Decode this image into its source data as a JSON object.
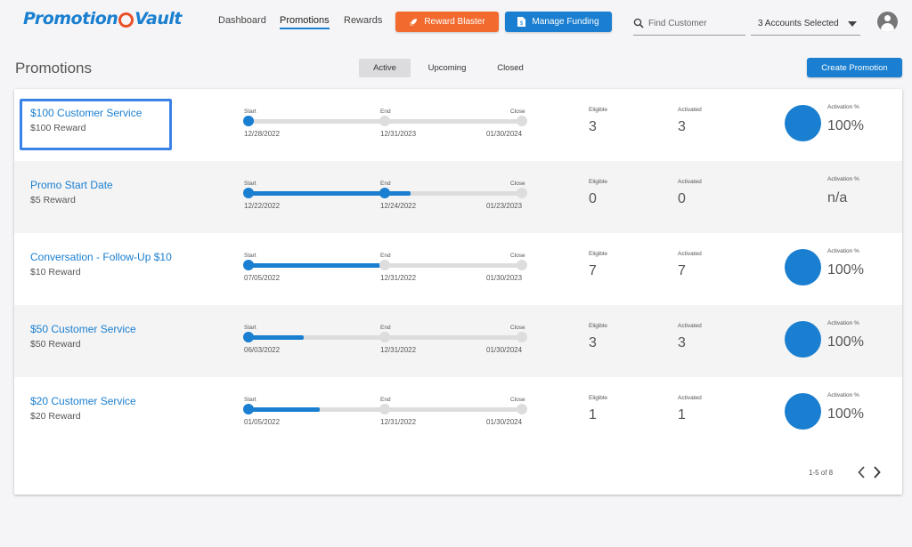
{
  "app": {
    "logo_text_a": "Promotion",
    "logo_text_b": "Vault"
  },
  "nav": {
    "items": [
      "Dashboard",
      "Promotions",
      "Rewards"
    ],
    "active": "Promotions"
  },
  "header_buttons": {
    "reward_blaster": "Reward Blaster",
    "manage_funding": "Manage Funding"
  },
  "search": {
    "placeholder": "Find Customer",
    "icon": "search-icon"
  },
  "accounts": {
    "selected_label": "3 Accounts Selected"
  },
  "page": {
    "title": "Promotions",
    "tabs": [
      "Active",
      "Upcoming",
      "Closed"
    ],
    "active_tab": "Active",
    "create_button": "Create Promotion"
  },
  "timeline_labels": {
    "start": "Start",
    "end": "End",
    "close": "Close"
  },
  "stat_labels": {
    "eligible": "Eligible",
    "activated": "Activated",
    "activation_pct": "Activation %"
  },
  "promotions": [
    {
      "name": "$100 Customer Service",
      "reward": "$100 Reward",
      "start": "12/28/2022",
      "end": "12/31/2023",
      "close": "01/30/2024",
      "progress": 0.0,
      "end_reached": false,
      "eligible": "3",
      "activated": "3",
      "activation_pct": "100%",
      "activation_fraction": 1.0
    },
    {
      "name": "Promo Start Date",
      "reward": "$5 Reward",
      "start": "12/22/2022",
      "end": "12/24/2022",
      "close": "01/23/2023",
      "progress": 0.59,
      "end_reached": true,
      "eligible": "0",
      "activated": "0",
      "activation_pct": "n/a",
      "activation_fraction": null
    },
    {
      "name": "Conversation - Follow-Up $10",
      "reward": "$10 Reward",
      "start": "07/05/2022",
      "end": "12/31/2022",
      "close": "01/30/2023",
      "progress": 0.48,
      "end_reached": false,
      "eligible": "7",
      "activated": "7",
      "activation_pct": "100%",
      "activation_fraction": 1.0
    },
    {
      "name": "$50 Customer Service",
      "reward": "$50 Reward",
      "start": "06/03/2022",
      "end": "12/31/2022",
      "close": "01/30/2024",
      "progress": 0.2,
      "end_reached": false,
      "eligible": "3",
      "activated": "3",
      "activation_pct": "100%",
      "activation_fraction": 1.0
    },
    {
      "name": "$20 Customer Service",
      "reward": "$20 Reward",
      "start": "01/05/2022",
      "end": "12/31/2022",
      "close": "01/30/2024",
      "progress": 0.26,
      "end_reached": false,
      "eligible": "1",
      "activated": "1",
      "activation_pct": "100%",
      "activation_fraction": 1.0
    }
  ],
  "pagination": {
    "range_text": "1-5 of 8"
  },
  "colors": {
    "accent": "#1a7fd0",
    "orange": "#f26a2e",
    "highlight": "#3b82e8"
  }
}
